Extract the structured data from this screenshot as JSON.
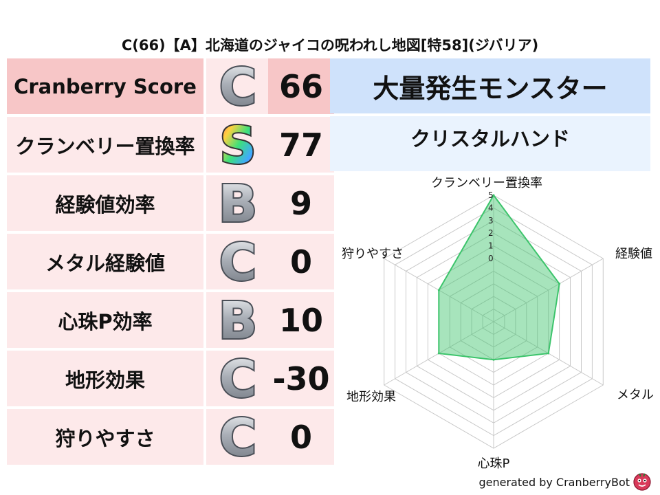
{
  "title": "C(66)【A】北海道のジャイコの呪われし地図[特58](ジバリア)",
  "rows": [
    {
      "label": "Cranberry Score",
      "grade": "C",
      "value": "66"
    },
    {
      "label": "クランベリー置換率",
      "grade": "S",
      "value": "77"
    },
    {
      "label": "経験値効率",
      "grade": "B",
      "value": "9"
    },
    {
      "label": "メタル経験値",
      "grade": "C",
      "value": "0"
    },
    {
      "label": "心珠P効率",
      "grade": "B",
      "value": "10"
    },
    {
      "label": "地形効果",
      "grade": "C",
      "value": "-30"
    },
    {
      "label": "狩りやすさ",
      "grade": "C",
      "value": "0"
    }
  ],
  "panel": {
    "heading": "大量発生モンスター",
    "monster": "クリスタルハンド"
  },
  "radar": {
    "axes": [
      "クランベリー置換率",
      "経験値",
      "メタル",
      "心珠P",
      "地形効果",
      "狩りやすさ"
    ],
    "ticks": [
      "0",
      "1",
      "2",
      "3",
      "4",
      "5"
    ],
    "max": 5,
    "values": [
      5,
      1,
      0,
      -2,
      0,
      0
    ],
    "fill_color": "#3cc46b",
    "grid_color": "#c8c8c8"
  },
  "footer": {
    "text": "generated by CranberryBot"
  },
  "colors": {
    "header_pink": "#f7c6c7",
    "row_pink": "#fde9ea",
    "panel_blue": "#cfe2fb",
    "panel_light_blue": "#eaf3fe",
    "grade_silver": "#9ba0a8"
  }
}
